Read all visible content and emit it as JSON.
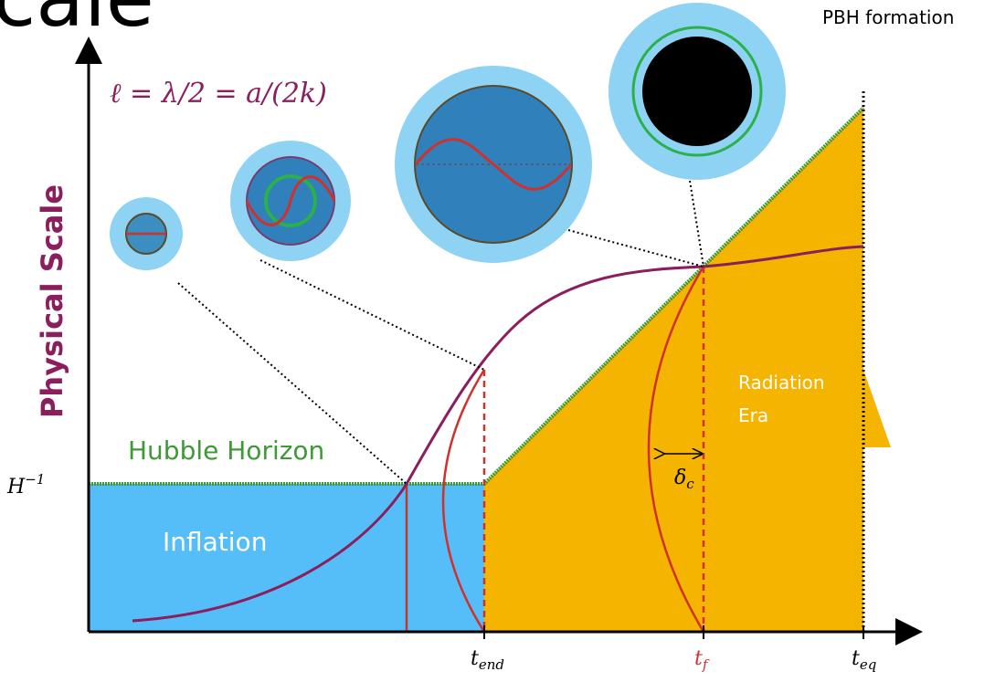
{
  "header": {
    "title": "cale",
    "note": "PBH formation"
  },
  "axis": {
    "y_label": "Physical Scale",
    "y_tick": {
      "base": "H",
      "sup": "−1"
    },
    "x_ticks": [
      {
        "base": "t",
        "sub": "end"
      },
      {
        "base": "t",
        "sub": "f"
      },
      {
        "base": "t",
        "sub": "eq"
      }
    ]
  },
  "formula": "ℓ = λ/2 = a/(2k)",
  "regions": {
    "horizon": "Hubble Horizon",
    "inflation": "Inflation",
    "radiation": [
      "Radiation",
      "Era"
    ]
  },
  "threshold": {
    "base": "δ",
    "sub": "c"
  }
}
